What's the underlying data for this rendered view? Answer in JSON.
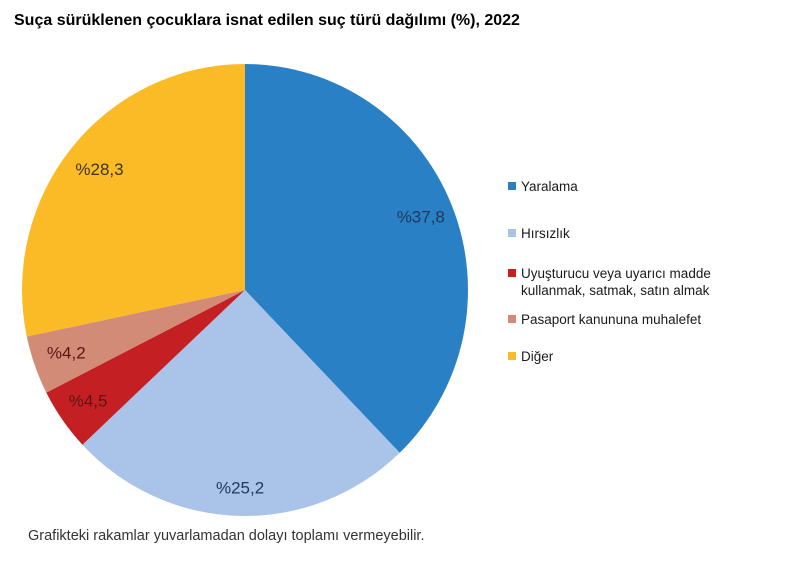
{
  "title": "Suça sürüklenen çocuklara isnat edilen suç türü dağılımı (%), 2022",
  "footnote": "Grafikteki rakamlar yuvarlamadan dolayı toplamı vermeyebilir.",
  "chart_data": {
    "type": "pie",
    "title": "Suça sürüklenen çocuklara isnat edilen suç türü dağılımı (%), 2022",
    "unit": "percent",
    "start_angle_deg": 0,
    "direction": "clockwise",
    "legend_position": "right",
    "data_label_format": "%value (Turkish style, comma decimal)",
    "slices": [
      {
        "label": "Yaralama",
        "value": 37.8,
        "display": "%37,8",
        "color": "#2980C4",
        "label_color": "#20395C",
        "label_r": 0.85
      },
      {
        "label": "Hırsızlık",
        "value": 25.2,
        "display": "%25,2",
        "color": "#A9C3E9",
        "label_color": "#20395C",
        "label_r": 0.88
      },
      {
        "label": "Uyuşturucu veya uyarıcı madde kullanmak, satmak, satın almak",
        "value": 4.5,
        "display": "%4,5",
        "color": "#C42023",
        "label_color": "#5E1315",
        "label_r": 0.86
      },
      {
        "label": "Pasaport kanununa muhalefet",
        "value": 4.2,
        "display": "%4,2",
        "color": "#D28B76",
        "label_color": "#5E1315",
        "label_r": 0.85
      },
      {
        "label": "Diğer",
        "value": 28.3,
        "display": "%28,3",
        "color": "#FBBB26",
        "label_color": "#3D3425",
        "label_r": 0.84
      }
    ]
  }
}
